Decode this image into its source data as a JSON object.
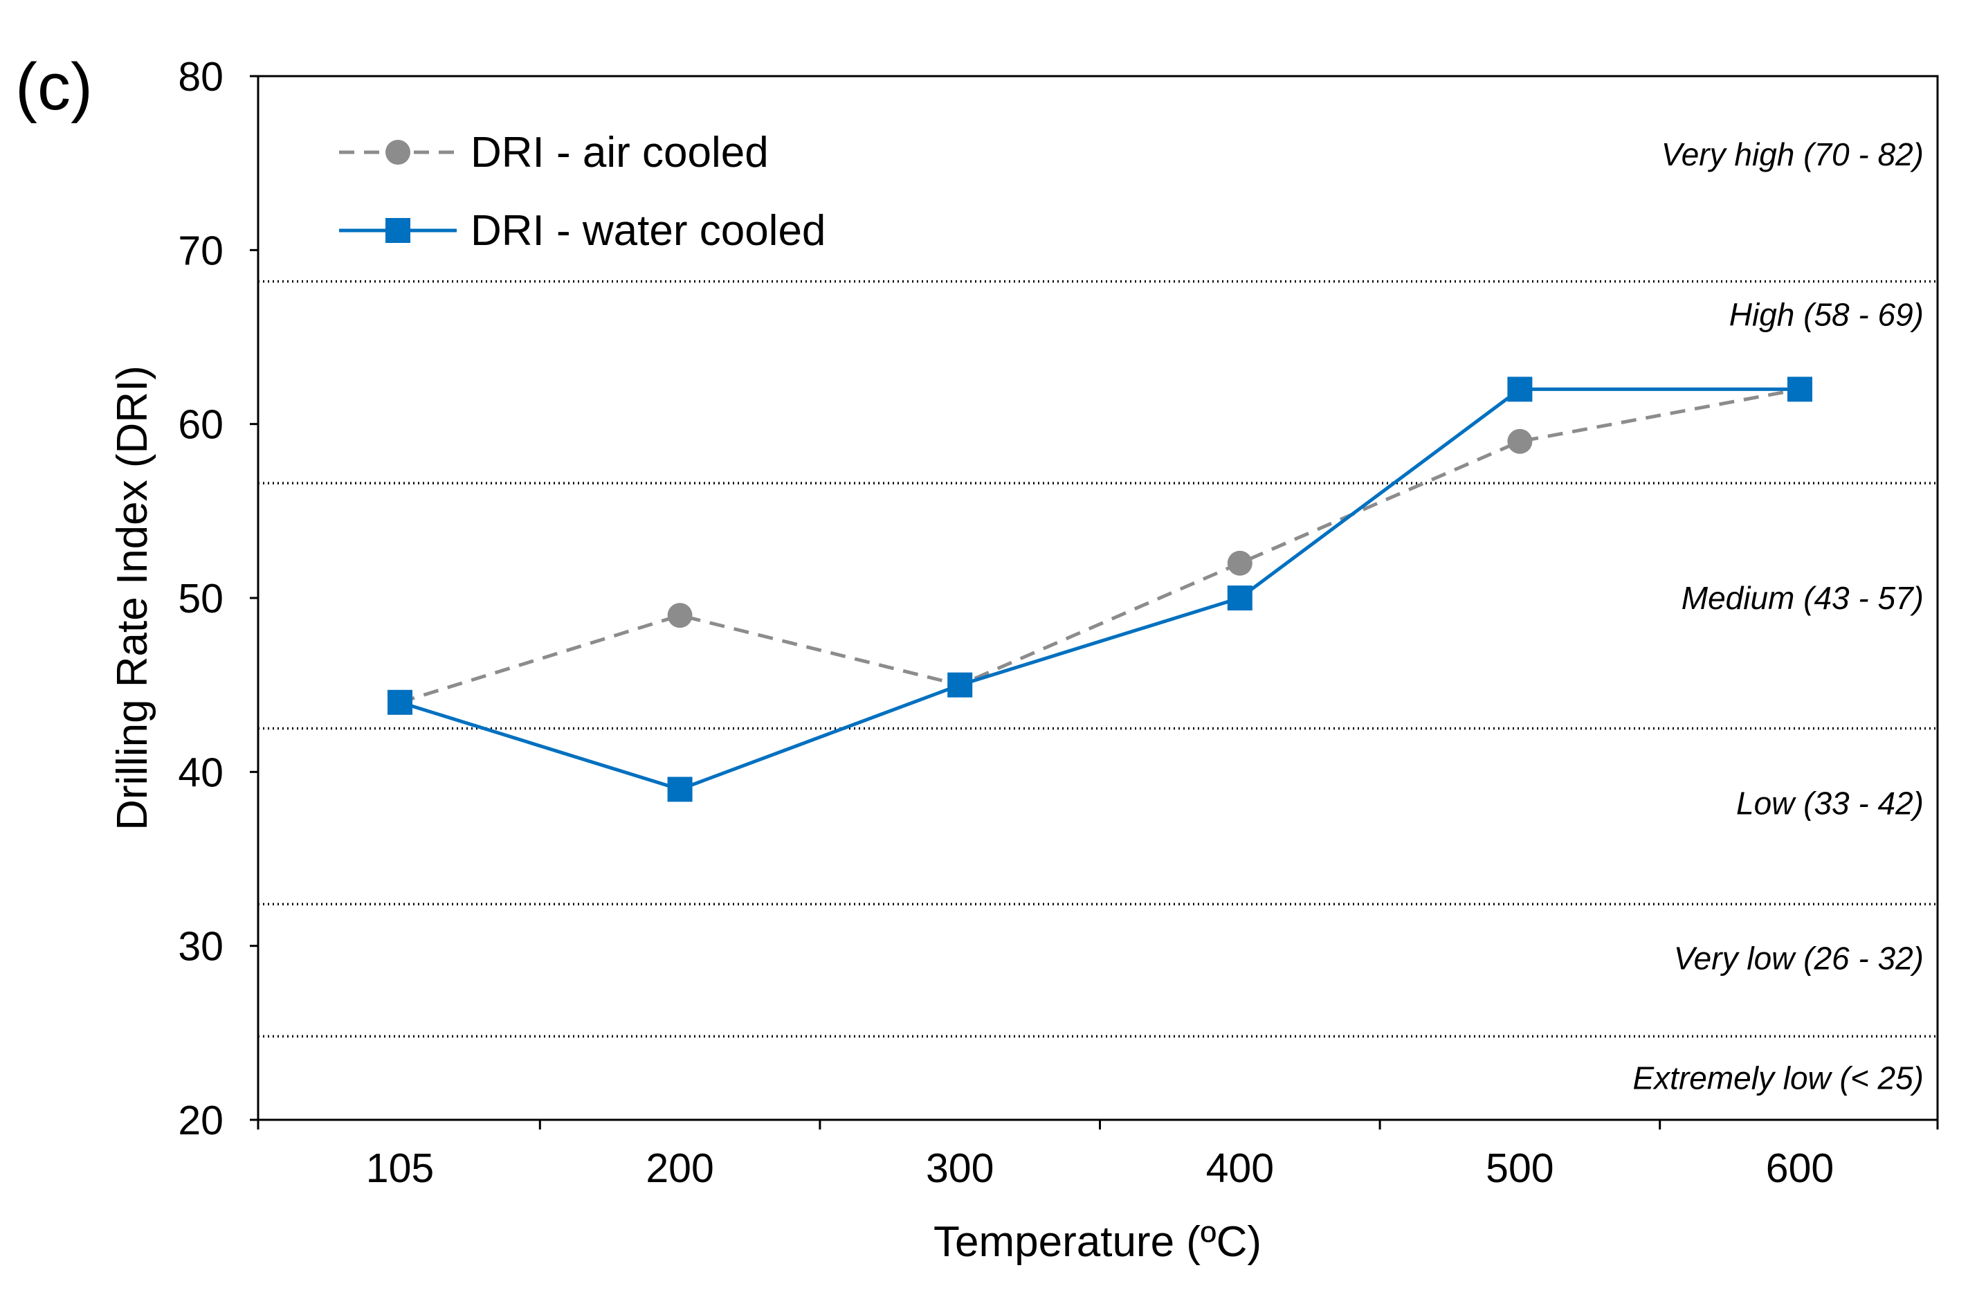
{
  "panel_label": "(c)",
  "chart_data": {
    "type": "line",
    "xlabel": "Temperature (ºC)",
    "ylabel": "Drilling Rate Index (DRI)",
    "ylim": [
      20,
      80
    ],
    "yticks": [
      20,
      30,
      40,
      50,
      60,
      70,
      80
    ],
    "categories": [
      "105",
      "200",
      "300",
      "400",
      "500",
      "600"
    ],
    "series": [
      {
        "name": "DRI - air cooled",
        "values": [
          44,
          49,
          45,
          52,
          59,
          62
        ],
        "color": "#8c8c8c",
        "line_style": "dashed",
        "marker": "circle"
      },
      {
        "name": "DRI - water cooled",
        "values": [
          44,
          39,
          45,
          50,
          62,
          62
        ],
        "color": "#0070c0",
        "line_style": "solid",
        "marker": "square"
      }
    ],
    "reference_lines": [
      68.2,
      56.6,
      42.5,
      32.4,
      24.8
    ],
    "bands": [
      {
        "label": "Very high (70 - 82)",
        "y": 75.5
      },
      {
        "label": "High (58 - 69)",
        "y": 66.3
      },
      {
        "label": "Medium (43 - 57)",
        "y": 50
      },
      {
        "label": "Low (33 - 42)",
        "y": 38.2
      },
      {
        "label": "Very low (26 - 32)",
        "y": 29.3
      },
      {
        "label": "Extremely low (< 25)",
        "y": 22.4
      }
    ],
    "legend_position": "top-left",
    "grid": false
  }
}
